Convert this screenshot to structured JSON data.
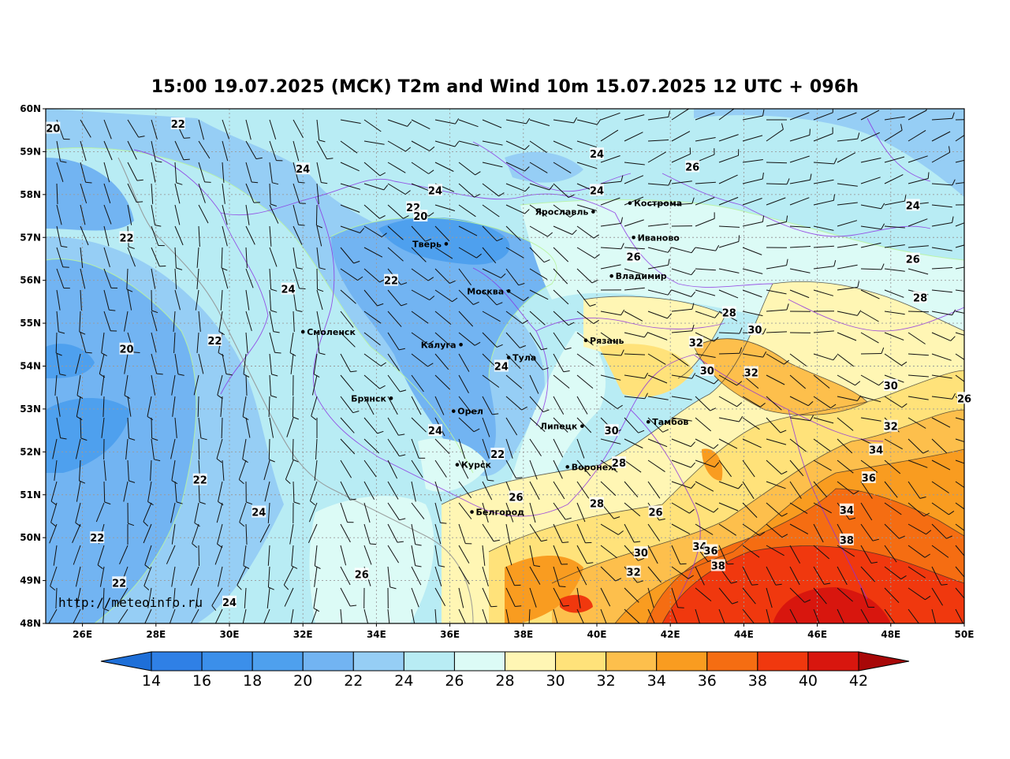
{
  "title": "15:00 19.07.2025 (МСК) T2m and Wind 10m 15.07.2025 12 UTC + 096h",
  "source_url": "http://meteoinfo.ru",
  "lat_ticks": [
    "60N",
    "59N",
    "58N",
    "57N",
    "56N",
    "55N",
    "54N",
    "53N",
    "52N",
    "51N",
    "50N",
    "49N",
    "48N"
  ],
  "lon_ticks": [
    "26E",
    "28E",
    "30E",
    "32E",
    "34E",
    "36E",
    "38E",
    "40E",
    "42E",
    "44E",
    "46E",
    "48E",
    "50E"
  ],
  "colorbar": {
    "labels": [
      "14",
      "16",
      "18",
      "20",
      "22",
      "24",
      "26",
      "28",
      "30",
      "32",
      "34",
      "36",
      "38",
      "40",
      "42"
    ],
    "colors": [
      "#2f80e6",
      "#3b8fea",
      "#4ea0ee",
      "#72b4f2",
      "#96cef5",
      "#b8ecf4",
      "#dcfbf6",
      "#fff6b4",
      "#ffe27a",
      "#fdbf4c",
      "#f99c20",
      "#f56d12",
      "#f0380e",
      "#d8160e",
      "#a80808"
    ],
    "under_color": "#1e6fd8",
    "over_color": "#a80808"
  },
  "cities": [
    {
      "name": "Ярославль",
      "lon": 39.9,
      "lat": 57.6
    },
    {
      "name": "Кострома",
      "lon": 40.9,
      "lat": 57.8
    },
    {
      "name": "Иваново",
      "lon": 41.0,
      "lat": 57.0
    },
    {
      "name": "Тверь",
      "lon": 35.9,
      "lat": 56.85
    },
    {
      "name": "Владимир",
      "lon": 40.4,
      "lat": 56.1
    },
    {
      "name": "Москва",
      "lon": 37.6,
      "lat": 55.75
    },
    {
      "name": "Смоленск",
      "lon": 32.0,
      "lat": 54.8
    },
    {
      "name": "Рязань",
      "lon": 39.7,
      "lat": 54.6
    },
    {
      "name": "Калуга",
      "lon": 36.3,
      "lat": 54.5
    },
    {
      "name": "Тула",
      "lon": 37.6,
      "lat": 54.2
    },
    {
      "name": "Брянск",
      "lon": 34.4,
      "lat": 53.25
    },
    {
      "name": "Орел",
      "lon": 36.1,
      "lat": 52.95
    },
    {
      "name": "Тамбов",
      "lon": 41.4,
      "lat": 52.7
    },
    {
      "name": "Липецк",
      "lon": 39.6,
      "lat": 52.6
    },
    {
      "name": "Курск",
      "lon": 36.2,
      "lat": 51.7
    },
    {
      "name": "Воронеж",
      "lon": 39.2,
      "lat": 51.65
    },
    {
      "name": "Белгород",
      "lon": 36.6,
      "lat": 50.6
    }
  ],
  "isotherm_labels": [
    {
      "t": "20",
      "lon": 25.2,
      "lat": 59.55
    },
    {
      "t": "22",
      "lon": 28.6,
      "lat": 59.65
    },
    {
      "t": "24",
      "lon": 32.0,
      "lat": 58.6
    },
    {
      "t": "24",
      "lon": 40.0,
      "lat": 58.95
    },
    {
      "t": "26",
      "lon": 42.6,
      "lat": 58.65
    },
    {
      "t": "24",
      "lon": 35.6,
      "lat": 58.1
    },
    {
      "t": "24",
      "lon": 40.0,
      "lat": 58.1
    },
    {
      "t": "22",
      "lon": 35.0,
      "lat": 57.7
    },
    {
      "t": "20",
      "lon": 35.2,
      "lat": 57.5
    },
    {
      "t": "22",
      "lon": 27.2,
      "lat": 57.0
    },
    {
      "t": "24",
      "lon": 48.6,
      "lat": 57.75
    },
    {
      "t": "26",
      "lon": 41.0,
      "lat": 56.55
    },
    {
      "t": "26",
      "lon": 48.6,
      "lat": 56.5
    },
    {
      "t": "22",
      "lon": 34.4,
      "lat": 56.0
    },
    {
      "t": "24",
      "lon": 31.6,
      "lat": 55.8
    },
    {
      "t": "28",
      "lon": 48.8,
      "lat": 55.6
    },
    {
      "t": "28",
      "lon": 43.6,
      "lat": 55.25
    },
    {
      "t": "30",
      "lon": 44.3,
      "lat": 54.85
    },
    {
      "t": "32",
      "lon": 42.7,
      "lat": 54.55
    },
    {
      "t": "22",
      "lon": 29.6,
      "lat": 54.6
    },
    {
      "t": "20",
      "lon": 27.2,
      "lat": 54.4
    },
    {
      "t": "24",
      "lon": 37.4,
      "lat": 54.0
    },
    {
      "t": "30",
      "lon": 43.0,
      "lat": 53.9
    },
    {
      "t": "32",
      "lon": 44.2,
      "lat": 53.85
    },
    {
      "t": "30",
      "lon": 48.0,
      "lat": 53.55
    },
    {
      "t": "26",
      "lon": 50.0,
      "lat": 53.25
    },
    {
      "t": "24",
      "lon": 35.6,
      "lat": 52.5
    },
    {
      "t": "30",
      "lon": 40.4,
      "lat": 52.5
    },
    {
      "t": "32",
      "lon": 48.0,
      "lat": 52.6
    },
    {
      "t": "22",
      "lon": 37.3,
      "lat": 51.95
    },
    {
      "t": "28",
      "lon": 40.6,
      "lat": 51.75
    },
    {
      "t": "34",
      "lon": 47.6,
      "lat": 52.05
    },
    {
      "t": "22",
      "lon": 29.2,
      "lat": 51.35
    },
    {
      "t": "36",
      "lon": 47.4,
      "lat": 51.4
    },
    {
      "t": "26",
      "lon": 37.8,
      "lat": 50.95
    },
    {
      "t": "28",
      "lon": 40.0,
      "lat": 50.8
    },
    {
      "t": "26",
      "lon": 41.6,
      "lat": 50.6
    },
    {
      "t": "34",
      "lon": 46.8,
      "lat": 50.65
    },
    {
      "t": "24",
      "lon": 30.8,
      "lat": 50.6
    },
    {
      "t": "22",
      "lon": 26.4,
      "lat": 50.0
    },
    {
      "t": "38",
      "lon": 46.8,
      "lat": 49.95
    },
    {
      "t": "34",
      "lon": 42.8,
      "lat": 49.8
    },
    {
      "t": "36",
      "lon": 43.1,
      "lat": 49.7
    },
    {
      "t": "30",
      "lon": 41.2,
      "lat": 49.65
    },
    {
      "t": "38",
      "lon": 43.3,
      "lat": 49.35
    },
    {
      "t": "32",
      "lon": 41.0,
      "lat": 49.2
    },
    {
      "t": "26",
      "lon": 33.6,
      "lat": 49.15
    },
    {
      "t": "22",
      "lon": 27.0,
      "lat": 48.95
    },
    {
      "t": "24",
      "lon": 30.0,
      "lat": 48.5
    }
  ]
}
